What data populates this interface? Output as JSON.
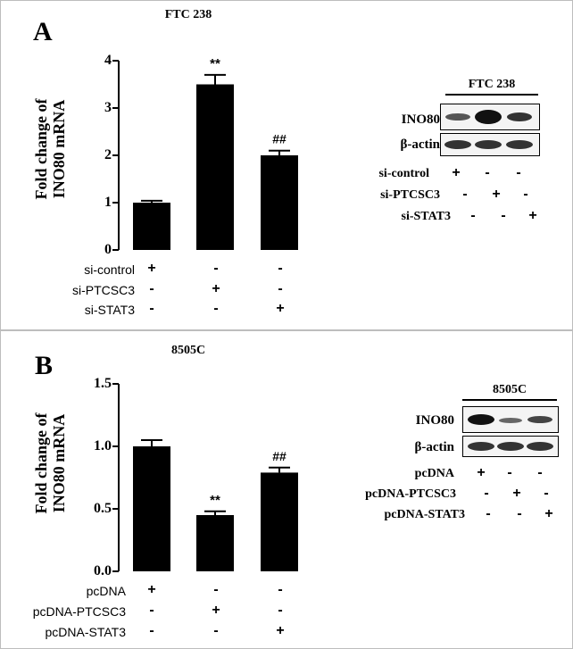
{
  "panels": [
    {
      "letter": "A",
      "title": "FTC 238",
      "ylabel_line1": "Fold change of",
      "ylabel_line2": "INO80 mRNA",
      "treatments": [
        "si-control",
        "si-PTCSC3",
        "si-STAT3"
      ],
      "signs": [
        [
          "+",
          "-",
          "-"
        ],
        [
          "-",
          "+",
          "-"
        ],
        [
          "-",
          "-",
          "+"
        ]
      ],
      "blot": {
        "title": "FTC 238",
        "rows": [
          "INO80",
          "β-actin"
        ],
        "treatments": [
          "si-control",
          "si-PTCSC3",
          "si-STAT3"
        ],
        "signs": [
          [
            "+",
            "-",
            "-"
          ],
          [
            "-",
            "+",
            "-"
          ],
          [
            "-",
            "-",
            "+"
          ]
        ]
      }
    },
    {
      "letter": "B",
      "title": "8505C",
      "ylabel_line1": "Fold change of",
      "ylabel_line2": "INO80 mRNA",
      "treatments": [
        "pcDNA",
        "pcDNA-PTCSC3",
        "pcDNA-STAT3"
      ],
      "signs": [
        [
          "+",
          "-",
          "-"
        ],
        [
          "-",
          "+",
          "-"
        ],
        [
          "-",
          "-",
          "+"
        ]
      ],
      "blot": {
        "title": "8505C",
        "rows": [
          "INO80",
          "β-actin"
        ],
        "treatments": [
          "pcDNA",
          "pcDNA-PTCSC3",
          "pcDNA-STAT3"
        ],
        "signs": [
          [
            "+",
            "-",
            "-"
          ],
          [
            "-",
            "+",
            "-"
          ],
          [
            "-",
            "-",
            "+"
          ]
        ]
      }
    }
  ],
  "chart_data": [
    {
      "type": "bar",
      "title": "FTC 238",
      "ylabel": "Fold change of INO80 mRNA",
      "categories": [
        "si-control",
        "si-PTCSC3",
        "si-STAT3"
      ],
      "values": [
        1.0,
        3.5,
        2.0
      ],
      "errors": [
        0.04,
        0.2,
        0.1
      ],
      "annotations": [
        "",
        "**",
        "##"
      ],
      "ylim": [
        0,
        4
      ],
      "yticks": [
        "0",
        "1",
        "2",
        "3",
        "4"
      ],
      "colors": [
        "#000000"
      ]
    },
    {
      "type": "bar",
      "title": "8505C",
      "ylabel": "Fold change of INO80 mRNA",
      "categories": [
        "pcDNA",
        "pcDNA-PTCSC3",
        "pcDNA-STAT3"
      ],
      "values": [
        1.0,
        0.45,
        0.79
      ],
      "errors": [
        0.05,
        0.03,
        0.04
      ],
      "annotations": [
        "",
        "**",
        "##"
      ],
      "ylim": [
        0,
        1.5
      ],
      "yticks": [
        "0.0",
        "0.5",
        "1.0",
        "1.5"
      ],
      "colors": [
        "#000000"
      ]
    }
  ]
}
